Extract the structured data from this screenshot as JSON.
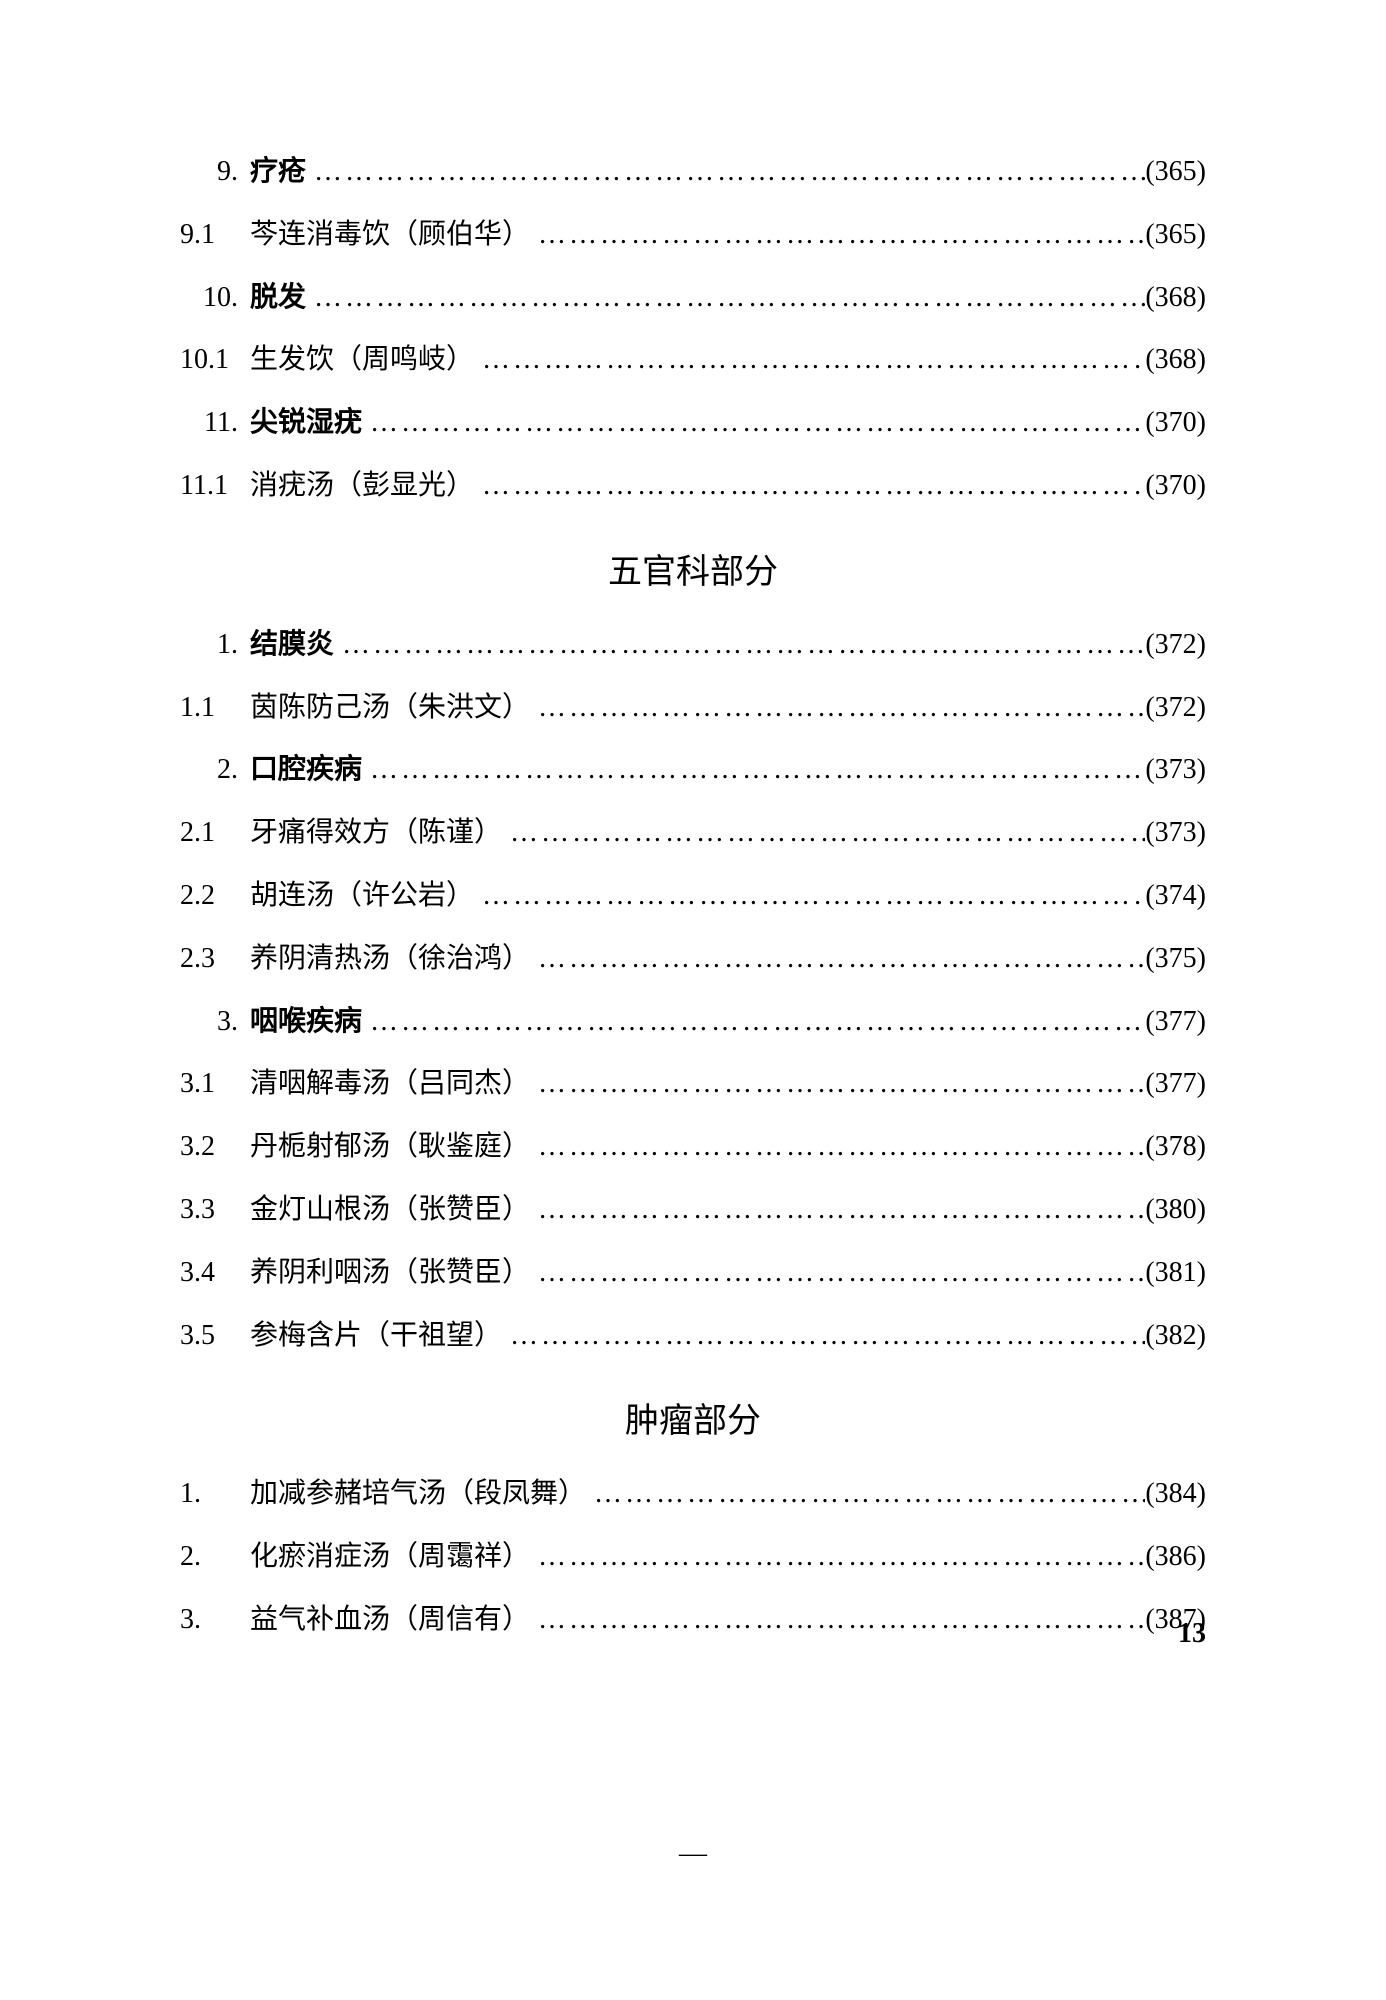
{
  "sections": [
    {
      "entries": [
        {
          "num": "9.",
          "title": "疗疮",
          "page": "(365)",
          "bold": true,
          "indent": true
        },
        {
          "num": "9.1",
          "title": "芩连消毒饮（顾伯华）",
          "page": "(365)",
          "bold": false,
          "indent": false
        },
        {
          "num": "10.",
          "title": "脱发",
          "page": "(368)",
          "bold": true,
          "indent": true
        },
        {
          "num": "10.1",
          "title": "生发饮（周鸣岐）",
          "page": "(368)",
          "bold": false,
          "indent": false
        },
        {
          "num": "11.",
          "title": "尖锐湿疣",
          "page": "(370)",
          "bold": true,
          "indent": true
        },
        {
          "num": "11.1",
          "title": "消疣汤（彭显光）",
          "page": "(370)",
          "bold": false,
          "indent": false
        }
      ]
    },
    {
      "heading": "五官科部分",
      "entries": [
        {
          "num": "1.",
          "title": "结膜炎",
          "page": "(372)",
          "bold": true,
          "indent": true
        },
        {
          "num": "1.1",
          "title": "茵陈防己汤（朱洪文）",
          "page": "(372)",
          "bold": false,
          "indent": false
        },
        {
          "num": "2.",
          "title": "口腔疾病",
          "page": "(373)",
          "bold": true,
          "indent": true
        },
        {
          "num": "2.1",
          "title": "牙痛得效方（陈谨）",
          "page": "(373)",
          "bold": false,
          "indent": false
        },
        {
          "num": "2.2",
          "title": "胡连汤（许公岩）",
          "page": "(374)",
          "bold": false,
          "indent": false
        },
        {
          "num": "2.3",
          "title": "养阴清热汤（徐治鸿）",
          "page": "(375)",
          "bold": false,
          "indent": false
        },
        {
          "num": "3.",
          "title": "咽喉疾病",
          "page": "(377)",
          "bold": true,
          "indent": true
        },
        {
          "num": "3.1",
          "title": "清咽解毒汤（吕同杰）",
          "page": "(377)",
          "bold": false,
          "indent": false
        },
        {
          "num": "3.2",
          "title": "丹栀射郁汤（耿鉴庭）",
          "page": "(378)",
          "bold": false,
          "indent": false
        },
        {
          "num": "3.3",
          "title": "金灯山根汤（张赞臣）",
          "page": "(380)",
          "bold": false,
          "indent": false
        },
        {
          "num": "3.4",
          "title": "养阴利咽汤（张赞臣）",
          "page": "(381)",
          "bold": false,
          "indent": false
        },
        {
          "num": "3.5",
          "title": "参梅含片（干祖望）",
          "page": "(382)",
          "bold": false,
          "indent": false
        }
      ]
    },
    {
      "heading": "肿瘤部分",
      "entries": [
        {
          "num": "1.",
          "title": "加减参赭培气汤（段凤舞）",
          "page": "(384)",
          "bold": false,
          "indent": false
        },
        {
          "num": "2.",
          "title": "化瘀消症汤（周霭祥）",
          "page": "(386)",
          "bold": false,
          "indent": false
        },
        {
          "num": "3.",
          "title": "益气补血汤（周信有）",
          "page": "(387)",
          "bold": false,
          "indent": false
        }
      ]
    }
  ],
  "pageNumber": "13",
  "bottomMark": "—",
  "dots": "………………………………………………………………………………"
}
